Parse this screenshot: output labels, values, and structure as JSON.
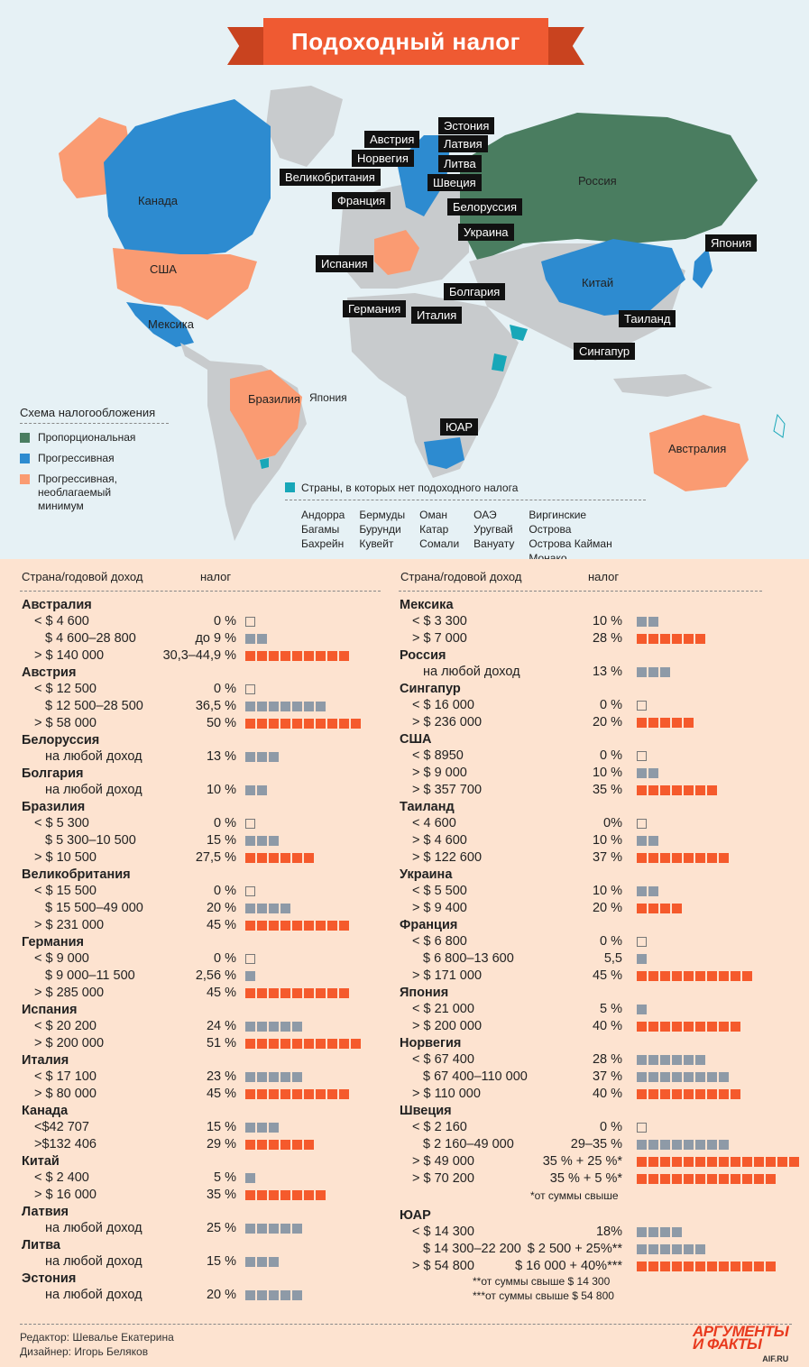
{
  "title": "Подоходный налог",
  "colors": {
    "proportional": "#4a7d60",
    "progressive": "#2d8bd0",
    "progressive_minimum": "#fa9b72",
    "no_tax": "#18a7b8",
    "land": "#c8cbcd",
    "bar_low": "#8e9aa7",
    "bar_high": "#f55a2c"
  },
  "map_labels": [
    {
      "text": "Эстония",
      "style": "tag"
    },
    {
      "text": "Австрия",
      "style": "tag"
    },
    {
      "text": "Латвия",
      "style": "tag"
    },
    {
      "text": "Норвегия",
      "style": "tag"
    },
    {
      "text": "Литва",
      "style": "tag"
    },
    {
      "text": "Великобритания",
      "style": "tag"
    },
    {
      "text": "Швеция",
      "style": "tag"
    },
    {
      "text": "Франция",
      "style": "tag"
    },
    {
      "text": "Белоруссия",
      "style": "tag"
    },
    {
      "text": "Украина",
      "style": "tag"
    },
    {
      "text": "Япония",
      "style": "tag"
    },
    {
      "text": "Испания",
      "style": "tag"
    },
    {
      "text": "Болгария",
      "style": "tag"
    },
    {
      "text": "Германия",
      "style": "tag"
    },
    {
      "text": "Италия",
      "style": "tag"
    },
    {
      "text": "Таиланд",
      "style": "tag"
    },
    {
      "text": "Сингапур",
      "style": "tag"
    },
    {
      "text": "ЮАР",
      "style": "tag"
    },
    {
      "text": "Россия",
      "style": "plain"
    },
    {
      "text": "Канада",
      "style": "plain"
    },
    {
      "text": "США",
      "style": "plain"
    },
    {
      "text": "Мексика",
      "style": "plain"
    },
    {
      "text": "Китай",
      "style": "plain"
    },
    {
      "text": "Бразилия",
      "style": "plain"
    },
    {
      "text": "Япония",
      "style": "plain"
    },
    {
      "text": "Австралия",
      "style": "plain"
    }
  ],
  "legend": {
    "title": "Схема налогообложения",
    "items": [
      "Пропорциональная",
      "Прогрессивная",
      "Прогрессивная, необлагаемый минимум"
    ]
  },
  "no_tax": {
    "title": "Страны, в которых нет подоходного налога",
    "columns": [
      [
        "Андорра",
        "Багамы",
        "Бахрейн"
      ],
      [
        "Бермуды",
        "Бурунди",
        "Кувейт"
      ],
      [
        "Оман",
        "Катар",
        "Сомали"
      ],
      [
        "ОАЭ",
        "Уругвай",
        "Вануату"
      ],
      [
        "Виргинские Острова",
        "Острова Кайман",
        "Монако"
      ]
    ]
  },
  "table_header": {
    "col1": "Страна/годовой доход",
    "col2": "налог"
  },
  "left_table": [
    {
      "country": "Австралия",
      "rows": [
        {
          "income": "< $ 4 600",
          "tax": "0 %",
          "squares": 1,
          "level": "empty"
        },
        {
          "income": "$ 4 600–28 800",
          "tax": "до 9 %",
          "squares": 2,
          "level": "low"
        },
        {
          "income": "> $ 140 000",
          "tax": "30,3–44,9 %",
          "squares": 9,
          "level": "high"
        }
      ]
    },
    {
      "country": "Австрия",
      "rows": [
        {
          "income": "< $ 12 500",
          "tax": "0 %",
          "squares": 1,
          "level": "empty"
        },
        {
          "income": "$ 12 500–28 500",
          "tax": "36,5 %",
          "squares": 7,
          "level": "low"
        },
        {
          "income": "> $ 58 000",
          "tax": "50 %",
          "squares": 10,
          "level": "high"
        }
      ]
    },
    {
      "country": "Белоруссия",
      "rows": [
        {
          "income": "на любой доход",
          "tax": "13 %",
          "squares": 3,
          "level": "low"
        }
      ]
    },
    {
      "country": "Болгария",
      "rows": [
        {
          "income": "на любой доход",
          "tax": "10 %",
          "squares": 2,
          "level": "low"
        }
      ]
    },
    {
      "country": "Бразилия",
      "rows": [
        {
          "income": "< $ 5 300",
          "tax": "0 %",
          "squares": 1,
          "level": "empty"
        },
        {
          "income": "$ 5 300–10 500",
          "tax": "15 %",
          "squares": 3,
          "level": "low"
        },
        {
          "income": "> $ 10 500",
          "tax": "27,5 %",
          "squares": 6,
          "level": "high"
        }
      ]
    },
    {
      "country": "Великобритания",
      "rows": [
        {
          "income": "< $ 15 500",
          "tax": "0 %",
          "squares": 1,
          "level": "empty"
        },
        {
          "income": "$ 15 500–49 000",
          "tax": "20 %",
          "squares": 4,
          "level": "low"
        },
        {
          "income": "> $ 231 000",
          "tax": "45 %",
          "squares": 9,
          "level": "high"
        }
      ]
    },
    {
      "country": "Германия",
      "rows": [
        {
          "income": "< $ 9 000",
          "tax": "0 %",
          "squares": 1,
          "level": "empty"
        },
        {
          "income": "$ 9 000–11 500",
          "tax": "2,56 %",
          "squares": 1,
          "level": "low"
        },
        {
          "income": "> $ 285 000",
          "tax": "45 %",
          "squares": 9,
          "level": "high"
        }
      ]
    },
    {
      "country": "Испания",
      "rows": [
        {
          "income": "< $ 20 200",
          "tax": "24 %",
          "squares": 5,
          "level": "low"
        },
        {
          "income": "> $ 200 000",
          "tax": "51 %",
          "squares": 10,
          "level": "high"
        }
      ]
    },
    {
      "country": "Италия",
      "rows": [
        {
          "income": "< $ 17 100",
          "tax": "23 %",
          "squares": 5,
          "level": "low"
        },
        {
          "income": "> $ 80 000",
          "tax": "45 %",
          "squares": 9,
          "level": "high"
        }
      ]
    },
    {
      "country": "Канада",
      "rows": [
        {
          "income": "<$42 707",
          "tax": "15 %",
          "squares": 3,
          "level": "low"
        },
        {
          "income": ">$132 406",
          "tax": "29 %",
          "squares": 6,
          "level": "high"
        }
      ]
    },
    {
      "country": "Китай",
      "rows": [
        {
          "income": "< $ 2 400",
          "tax": "5 %",
          "squares": 1,
          "level": "low"
        },
        {
          "income": "> $ 16 000",
          "tax": "35 %",
          "squares": 7,
          "level": "high"
        }
      ]
    },
    {
      "country": "Латвия",
      "rows": [
        {
          "income": "на любой доход",
          "tax": "25 %",
          "squares": 5,
          "level": "low"
        }
      ]
    },
    {
      "country": "Литва",
      "rows": [
        {
          "income": "на любой доход",
          "tax": "15 %",
          "squares": 3,
          "level": "low"
        }
      ]
    },
    {
      "country": "Эстония",
      "rows": [
        {
          "income": "на любой доход",
          "tax": "20 %",
          "squares": 5,
          "level": "low"
        }
      ]
    }
  ],
  "right_table": [
    {
      "country": "Мексика",
      "rows": [
        {
          "income": "< $ 3 300",
          "tax": "10 %",
          "squares": 2,
          "level": "low"
        },
        {
          "income": "> $ 7 000",
          "tax": "28 %",
          "squares": 6,
          "level": "high"
        }
      ]
    },
    {
      "country": "Россия",
      "rows": [
        {
          "income": "на любой доход",
          "tax": "13 %",
          "squares": 3,
          "level": "low"
        }
      ]
    },
    {
      "country": "Сингапур",
      "rows": [
        {
          "income": "< $ 16 000",
          "tax": "0 %",
          "squares": 1,
          "level": "empty"
        },
        {
          "income": "> $ 236 000",
          "tax": "20 %",
          "squares": 5,
          "level": "high"
        }
      ]
    },
    {
      "country": "США",
      "rows": [
        {
          "income": "< $ 8950",
          "tax": "0 %",
          "squares": 1,
          "level": "empty"
        },
        {
          "income": "> $ 9 000",
          "tax": "10 %",
          "squares": 2,
          "level": "low"
        },
        {
          "income": "> $ 357 700",
          "tax": "35 %",
          "squares": 7,
          "level": "high"
        }
      ]
    },
    {
      "country": "Таиланд",
      "rows": [
        {
          "income": "< 4 600",
          "tax": "0%",
          "squares": 1,
          "level": "empty"
        },
        {
          "income": "> $ 4 600",
          "tax": "10 %",
          "squares": 2,
          "level": "low"
        },
        {
          "income": "> $ 122 600",
          "tax": "37 %",
          "squares": 8,
          "level": "high"
        }
      ]
    },
    {
      "country": "Украина",
      "rows": [
        {
          "income": "< $ 5 500",
          "tax": "10 %",
          "squares": 2,
          "level": "low"
        },
        {
          "income": "> $ 9 400",
          "tax": "20 %",
          "squares": 4,
          "level": "high"
        }
      ]
    },
    {
      "country": "Франция",
      "rows": [
        {
          "income": "< $ 6 800",
          "tax": "0 %",
          "squares": 1,
          "level": "empty"
        },
        {
          "income": "$ 6 800–13 600",
          "tax": "5,5",
          "squares": 1,
          "level": "low"
        },
        {
          "income": "> $ 171 000",
          "tax": "45 %",
          "squares": 10,
          "level": "high"
        }
      ]
    },
    {
      "country": "Япония",
      "rows": [
        {
          "income": "< $ 21 000",
          "tax": "5 %",
          "squares": 1,
          "level": "low"
        },
        {
          "income": "> $ 200 000",
          "tax": "40 %",
          "squares": 9,
          "level": "high"
        }
      ]
    },
    {
      "country": "Норвегия",
      "rows": [
        {
          "income": "< $ 67 400",
          "tax": "28 %",
          "squares": 6,
          "level": "low"
        },
        {
          "income": "$ 67 400–110 000",
          "tax": "37 %",
          "squares": 8,
          "level": "low"
        },
        {
          "income": "> $ 110 000",
          "tax": "40 %",
          "squares": 9,
          "level": "high"
        }
      ]
    },
    {
      "country": "Швеция",
      "rows": [
        {
          "income": "< $ 2 160",
          "tax": "0 %",
          "squares": 1,
          "level": "empty"
        },
        {
          "income": "$ 2 160–49 000",
          "tax": "29–35 %",
          "squares": 8,
          "level": "low"
        },
        {
          "income": "> $ 49 000",
          "tax": "35 % + 25 %*",
          "squares": 14,
          "level": "high"
        },
        {
          "income": "> $ 70 200",
          "tax": "35 % + 5 %*",
          "squares": 12,
          "level": "high"
        }
      ],
      "note": "*от суммы свыше"
    },
    {
      "country": "ЮАР",
      "rows": [
        {
          "income": "< $ 14 300",
          "tax": "18%",
          "squares": 4,
          "level": "low"
        },
        {
          "income": "$ 14 300–22 200",
          "tax": "$ 2 500 + 25%**",
          "squares": 6,
          "level": "low"
        },
        {
          "income": "> $ 54 800",
          "tax": "$ 16 000 + 40%***",
          "squares": 12,
          "level": "high"
        }
      ],
      "notes": [
        "**от суммы свыше $ 14 300",
        "***от суммы свыше $ 54 800"
      ]
    }
  ],
  "footer": {
    "editor": "Редактор: Шевалье Екатерина",
    "designer": "Дизайнер: Игорь Беляков",
    "logo_line1": "АРГУМЕНТЫ",
    "logo_line2": "И ФАКТЫ",
    "logo_site": "AIF.RU"
  }
}
